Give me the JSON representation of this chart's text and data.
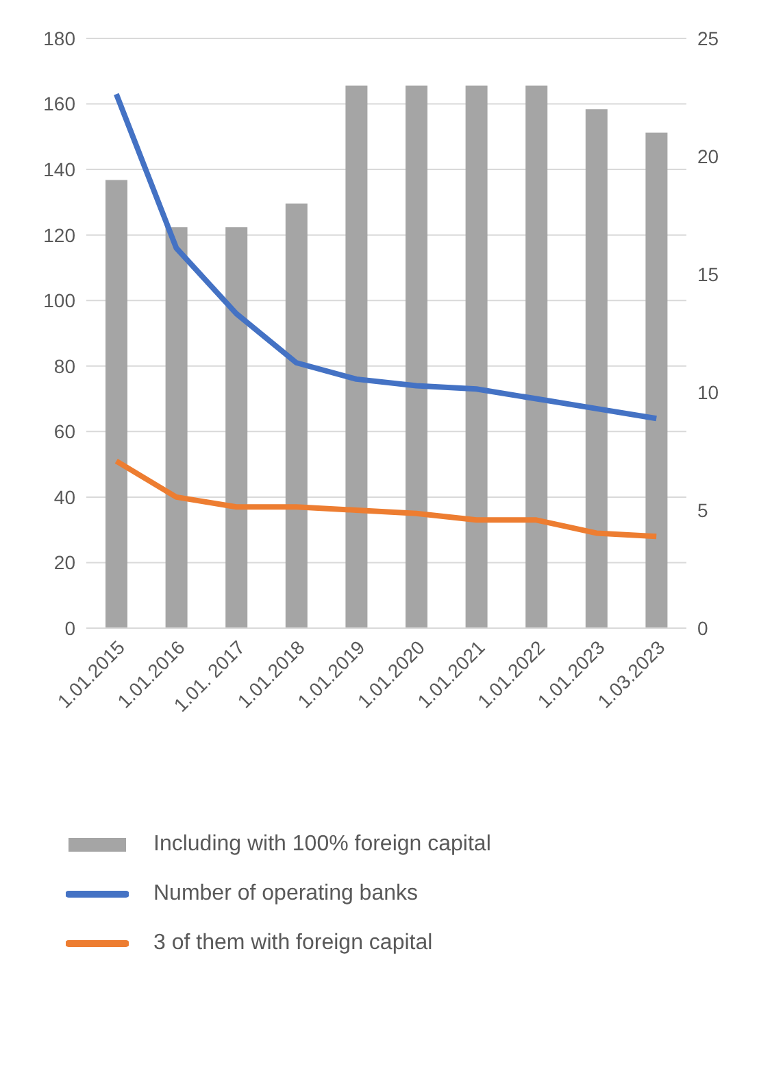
{
  "chart_data": {
    "type": "bar",
    "categories": [
      "1.01.2015",
      "1.01.2016",
      "1.01. 2017",
      "1.01.2018",
      "1.01.2019",
      "1.01.2020",
      "1.01.2021",
      "1.01.2022",
      "1.01.2023",
      "1.03.2023"
    ],
    "series": [
      {
        "name": "Including with 100% foreign capital",
        "axis": "y2",
        "color": "#a5a5a5",
        "values": [
          19,
          17,
          17,
          18,
          23,
          23,
          23,
          23,
          22,
          21
        ]
      },
      {
        "name": "Number of operating banks",
        "type": "line",
        "color": "#4472c4",
        "values": [
          163,
          116,
          96,
          81,
          76,
          74,
          73,
          70,
          67,
          64
        ]
      },
      {
        "name": "3 of them with foreign capital",
        "type": "line",
        "color": "#ed7d31",
        "values": [
          51,
          40,
          37,
          37,
          36,
          35,
          33,
          33,
          29,
          28
        ]
      }
    ],
    "ylim": [
      0,
      180
    ],
    "yticks": [
      0,
      20,
      40,
      60,
      80,
      100,
      120,
      140,
      160,
      180
    ],
    "y2lim": [
      0,
      25
    ],
    "y2ticks": [
      0,
      5,
      10,
      15,
      20,
      25
    ],
    "grid": "y",
    "legend": "bottom",
    "marker": "none"
  }
}
